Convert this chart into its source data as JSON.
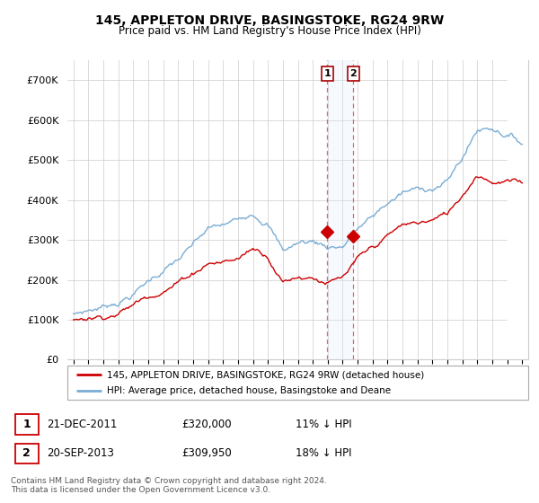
{
  "title": "145, APPLETON DRIVE, BASINGSTOKE, RG24 9RW",
  "subtitle": "Price paid vs. HM Land Registry's House Price Index (HPI)",
  "legend_line1": "145, APPLETON DRIVE, BASINGSTOKE, RG24 9RW (detached house)",
  "legend_line2": "HPI: Average price, detached house, Basingstoke and Deane",
  "footnote": "Contains HM Land Registry data © Crown copyright and database right 2024.\nThis data is licensed under the Open Government Licence v3.0.",
  "sale1_date": "21-DEC-2011",
  "sale1_price": "£320,000",
  "sale1_hpi": "11% ↓ HPI",
  "sale2_date": "20-SEP-2013",
  "sale2_price": "£309,950",
  "sale2_hpi": "18% ↓ HPI",
  "red_color": "#cc0000",
  "blue_color": "#7aadd4",
  "shade_color": "#ddeeff",
  "ylim": [
    0,
    750000
  ],
  "yticks": [
    0,
    100000,
    200000,
    300000,
    400000,
    500000,
    600000,
    700000
  ],
  "ytick_labels": [
    "£0",
    "£100K",
    "£200K",
    "£300K",
    "£400K",
    "£500K",
    "£600K",
    "£700K"
  ],
  "sale1_x": 2011.97,
  "sale1_y": 320000,
  "sale2_x": 2013.72,
  "sale2_y": 309950,
  "hatch_start": 2024.0,
  "xlim_left": 1994.6,
  "xlim_right": 2025.4
}
